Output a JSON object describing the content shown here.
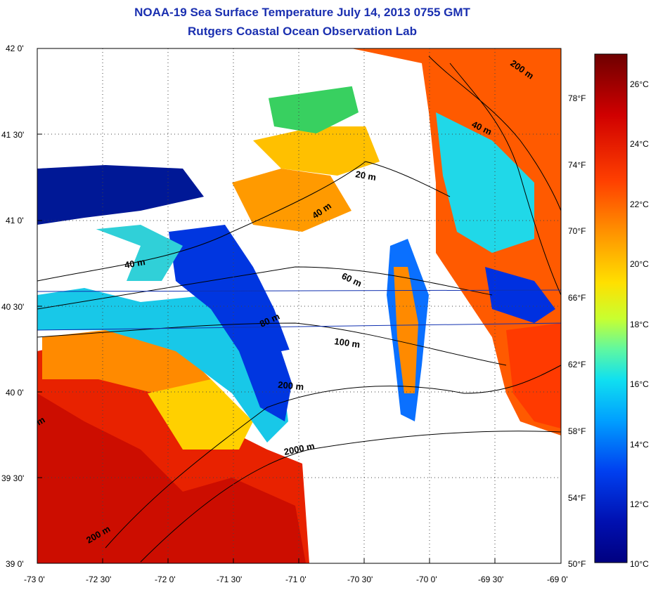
{
  "header": {
    "title_line1": "NOAA-19 Sea Surface Temperature July 14, 2013 0755 GMT",
    "title_line2": "Rutgers Coastal Ocean Observation Lab"
  },
  "map": {
    "lat_labels": [
      "42 0'",
      "41 30'",
      "41 0'",
      "40 30'",
      "40 0'",
      "39 30'",
      "39 0'"
    ],
    "lon_labels": [
      "-73 0'",
      "-72 30'",
      "-72 0'",
      "-71 30'",
      "-71 0'",
      "-70 30'",
      "-70 0'",
      "-69 30'",
      "-69 0'"
    ],
    "contour_labels": [
      "200 m",
      "40 m",
      "20 m",
      "40 m",
      "40 m",
      "60 m",
      "80 m",
      "100 m",
      "200 m",
      "2000 m",
      "200 m",
      "m"
    ]
  },
  "colorbar": {
    "celsius_labels": [
      "26°C",
      "24°C",
      "22°C",
      "20°C",
      "18°C",
      "16°C",
      "14°C",
      "12°C",
      "10°C"
    ],
    "fahrenheit_labels": [
      "78°F",
      "74°F",
      "70°F",
      "66°F",
      "62°F",
      "58°F",
      "54°F",
      "50°F"
    ],
    "colors": [
      "#7a0000",
      "#c40000",
      "#ff2a00",
      "#ff7a00",
      "#ffc400",
      "#e8ff20",
      "#80ff80",
      "#20e8e8",
      "#00a8ff",
      "#0050ff",
      "#0010c8",
      "#00007a"
    ]
  }
}
